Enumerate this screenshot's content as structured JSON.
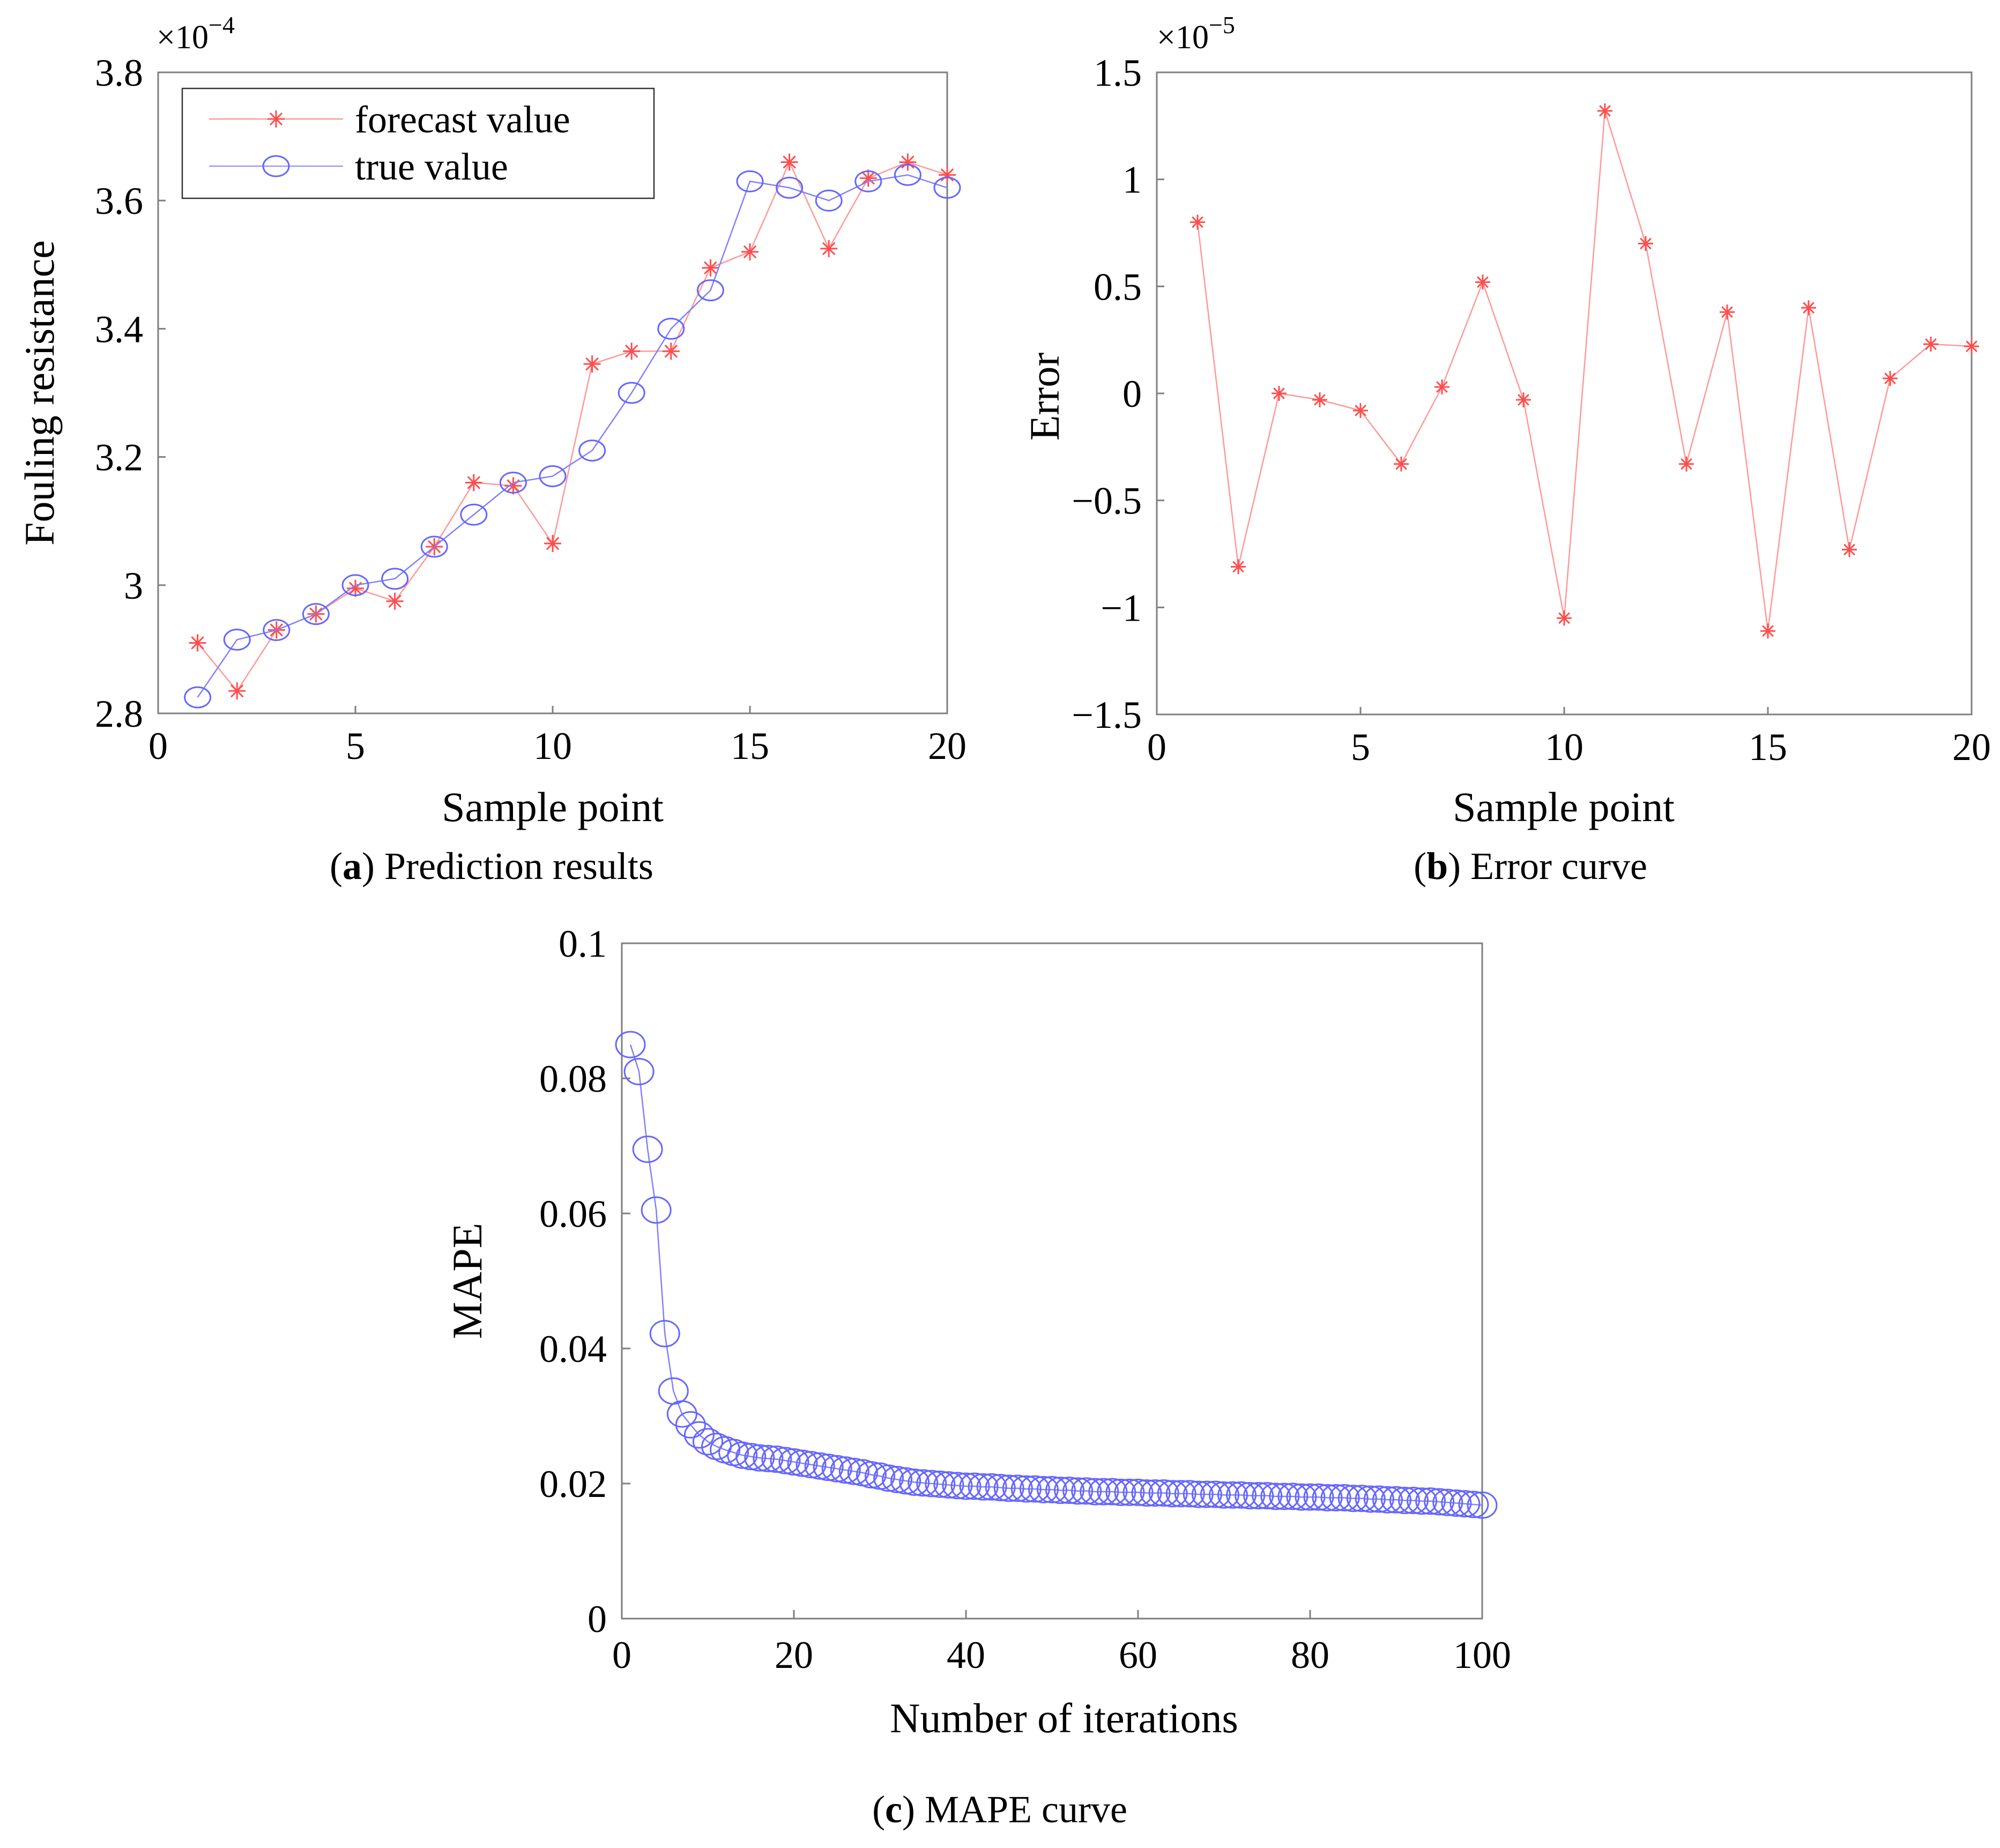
{
  "chart_data": [
    {
      "id": "a",
      "type": "line",
      "caption_letter": "a",
      "caption_text": " Prediction results",
      "xlabel": "Sample point",
      "ylabel": "Fouling resistance",
      "exponent_label": "×10",
      "exponent_power": "−4",
      "xlim": [
        0,
        20
      ],
      "ylim": [
        2.8,
        3.8
      ],
      "xticks": [
        0,
        5,
        10,
        15,
        20
      ],
      "xtick_labels": [
        "0",
        "5",
        "10",
        "15",
        "20"
      ],
      "yticks": [
        2.8,
        3.0,
        3.2,
        3.4,
        3.6,
        3.8
      ],
      "ytick_labels": [
        "2.8",
        "3",
        "3.2",
        "3.4",
        "3.6",
        "3.8"
      ],
      "legend_position": "top-left",
      "x": [
        1,
        2,
        3,
        4,
        5,
        6,
        7,
        8,
        9,
        10,
        11,
        12,
        13,
        14,
        15,
        16,
        17,
        18,
        19,
        20
      ],
      "series": [
        {
          "name": "forecast value",
          "color": "#ff4d4d",
          "marker": "star",
          "values": [
            2.91,
            2.835,
            2.93,
            2.955,
            2.995,
            2.975,
            3.06,
            3.16,
            3.155,
            3.065,
            3.345,
            3.365,
            3.365,
            3.495,
            3.52,
            3.66,
            3.525,
            3.635,
            3.66,
            3.64
          ]
        },
        {
          "name": "true value",
          "color": "#6666ff",
          "marker": "circle",
          "values": [
            2.825,
            2.915,
            2.93,
            2.955,
            3.0,
            3.01,
            3.06,
            3.11,
            3.16,
            3.17,
            3.21,
            3.3,
            3.4,
            3.46,
            3.63,
            3.62,
            3.6,
            3.63,
            3.64,
            3.62
          ]
        }
      ]
    },
    {
      "id": "b",
      "type": "line",
      "caption_letter": "b",
      "caption_text": " Error curve",
      "xlabel": "Sample point",
      "ylabel": "Error",
      "exponent_label": "×10",
      "exponent_power": "−5",
      "xlim": [
        0,
        20
      ],
      "ylim": [
        -1.5,
        1.5
      ],
      "xticks": [
        0,
        5,
        10,
        15,
        20
      ],
      "xtick_labels": [
        "0",
        "5",
        "10",
        "15",
        "20"
      ],
      "yticks": [
        -1.5,
        -1,
        -0.5,
        0,
        0.5,
        1,
        1.5
      ],
      "ytick_labels": [
        "−1.5",
        "−1",
        "−0.5",
        "0",
        "0.5",
        "1",
        "1.5"
      ],
      "x": [
        1,
        2,
        3,
        4,
        5,
        6,
        7,
        8,
        9,
        10,
        11,
        12,
        13,
        14,
        15,
        16,
        17,
        18,
        19,
        20
      ],
      "series": [
        {
          "name": "error",
          "color": "#ff4d4d",
          "marker": "star",
          "values": [
            0.8,
            -0.81,
            0.0,
            -0.03,
            -0.08,
            -0.33,
            0.03,
            0.52,
            -0.03,
            -1.05,
            1.32,
            0.7,
            -0.33,
            0.38,
            -1.11,
            0.4,
            -0.73,
            0.07,
            0.23,
            0.22
          ]
        }
      ]
    },
    {
      "id": "c",
      "type": "line",
      "caption_letter": "c",
      "caption_text": " MAPE curve",
      "xlabel": "Number of iterations",
      "ylabel": "MAPE",
      "xlim": [
        0,
        100
      ],
      "ylim": [
        0,
        0.1
      ],
      "xticks": [
        0,
        20,
        40,
        60,
        80,
        100
      ],
      "xtick_labels": [
        "0",
        "20",
        "40",
        "60",
        "80",
        "100"
      ],
      "yticks": [
        0,
        0.02,
        0.04,
        0.06,
        0.08,
        0.1
      ],
      "ytick_labels": [
        "0",
        "0.02",
        "0.04",
        "0.06",
        "0.08",
        "0.1"
      ],
      "x": [
        1,
        2,
        3,
        4,
        5,
        6,
        7,
        8,
        9,
        10,
        11,
        12,
        13,
        14,
        15,
        16,
        17,
        18,
        19,
        20,
        21,
        22,
        23,
        24,
        25,
        26,
        27,
        28,
        29,
        30,
        31,
        32,
        33,
        34,
        35,
        36,
        37,
        38,
        39,
        40,
        41,
        42,
        43,
        44,
        45,
        46,
        47,
        48,
        49,
        50,
        51,
        52,
        53,
        54,
        55,
        56,
        57,
        58,
        59,
        60,
        61,
        62,
        63,
        64,
        65,
        66,
        67,
        68,
        69,
        70,
        71,
        72,
        73,
        74,
        75,
        76,
        77,
        78,
        79,
        80,
        81,
        82,
        83,
        84,
        85,
        86,
        87,
        88,
        89,
        90,
        91,
        92,
        93,
        94,
        95,
        96,
        97,
        98,
        99,
        100
      ],
      "series": [
        {
          "name": "MAPE",
          "color": "#6666ff",
          "marker": "circle",
          "values": [
            0.085,
            0.081,
            0.0695,
            0.0605,
            0.0422,
            0.0337,
            0.0303,
            0.0287,
            0.0272,
            0.0262,
            0.0255,
            0.025,
            0.0246,
            0.0242,
            0.024,
            0.0238,
            0.0237,
            0.0236,
            0.0234,
            0.0232,
            0.023,
            0.0228,
            0.0226,
            0.0224,
            0.0222,
            0.022,
            0.0218,
            0.0216,
            0.0213,
            0.0211,
            0.0208,
            0.0206,
            0.0204,
            0.0202,
            0.0201,
            0.02,
            0.0199,
            0.0198,
            0.0197,
            0.0196,
            0.0196,
            0.0195,
            0.0195,
            0.0194,
            0.0193,
            0.0193,
            0.0192,
            0.0192,
            0.0191,
            0.0191,
            0.019,
            0.019,
            0.0189,
            0.0189,
            0.0188,
            0.0188,
            0.0188,
            0.0187,
            0.0187,
            0.0187,
            0.0186,
            0.0186,
            0.0186,
            0.0185,
            0.0185,
            0.0185,
            0.0184,
            0.0184,
            0.0184,
            0.0183,
            0.0183,
            0.0183,
            0.0182,
            0.0182,
            0.0182,
            0.0181,
            0.0181,
            0.0181,
            0.018,
            0.018,
            0.018,
            0.0179,
            0.0179,
            0.0179,
            0.0178,
            0.0178,
            0.0177,
            0.0177,
            0.0176,
            0.0176,
            0.0175,
            0.0175,
            0.0174,
            0.0174,
            0.0173,
            0.0172,
            0.0171,
            0.017,
            0.0169,
            0.0168
          ]
        }
      ]
    }
  ]
}
